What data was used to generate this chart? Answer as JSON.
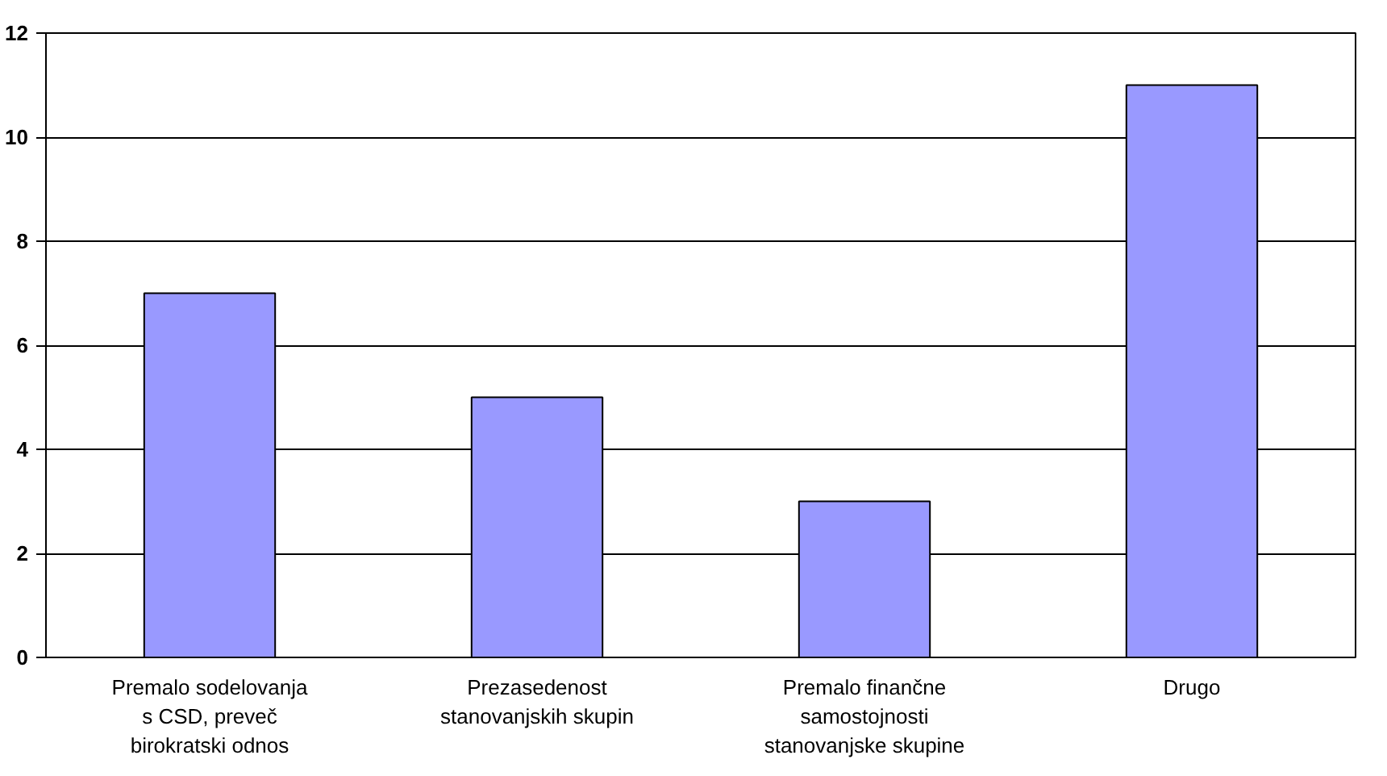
{
  "chart_data": {
    "type": "bar",
    "categories": [
      "Premalo sodelovanja\ns CSD, preveč\nbirokratski odnos",
      "Prezasedenost\nstanovanjskih skupin",
      "Premalo finančne\nsamostojnosti\nstanovanjske skupine",
      "Drugo"
    ],
    "values": [
      7,
      5,
      3,
      11
    ],
    "color": "#9999ff",
    "ylim": [
      0,
      12
    ],
    "yticks": [
      0,
      2,
      4,
      6,
      8,
      10,
      12
    ],
    "grid": "y"
  }
}
